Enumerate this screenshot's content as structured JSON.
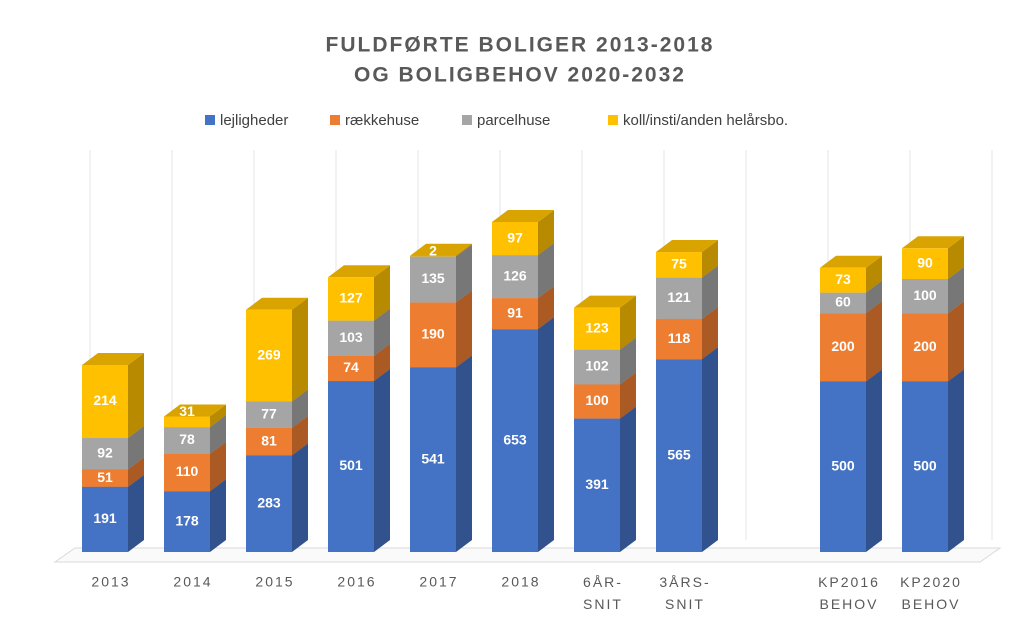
{
  "chart_data": {
    "type": "bar3d_stacked",
    "title": [
      "FULDFØRTE BOLIGER 2013-2018",
      "OG BOLIGBEHOV 2020-2032"
    ],
    "categories": [
      "2013",
      "2014",
      "2015",
      "2016",
      "2017",
      "2018",
      "6ÅR-SNIT",
      "3ÅRS-SNIT",
      null,
      "KP2016 BEHOV",
      "KP2020 BEHOV"
    ],
    "series": [
      {
        "name": "lejligheder",
        "color": "#4472c4",
        "values": [
          191,
          178,
          283,
          501,
          541,
          653,
          391,
          565,
          null,
          500,
          500
        ]
      },
      {
        "name": "rækkehuse",
        "color": "#ed7d31",
        "values": [
          51,
          110,
          81,
          74,
          190,
          91,
          100,
          118,
          null,
          200,
          200
        ]
      },
      {
        "name": "parcelhuse",
        "color": "#a5a5a5",
        "values": [
          92,
          78,
          77,
          103,
          135,
          126,
          102,
          121,
          null,
          60,
          100
        ]
      },
      {
        "name": "koll/insti/anden helårsbo.",
        "color": "#ffc000",
        "values": [
          214,
          31,
          269,
          127,
          2,
          97,
          123,
          75,
          null,
          73,
          90
        ]
      }
    ],
    "legend": "top"
  }
}
